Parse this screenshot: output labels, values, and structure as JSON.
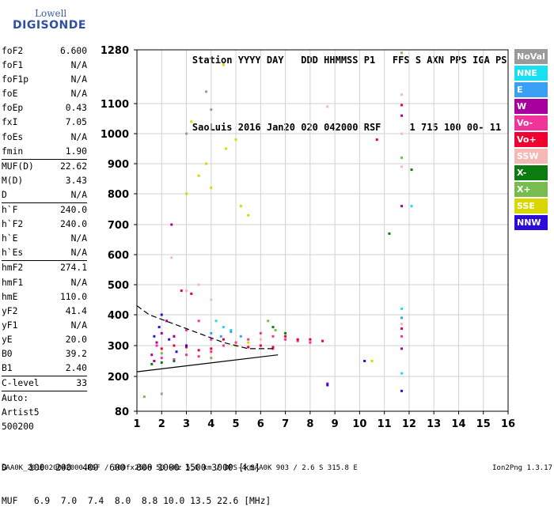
{
  "logo": {
    "line1": "Lowell",
    "line2": "DIGISONDE"
  },
  "header": {
    "row1": [
      "Station",
      "YYYY",
      "DAY",
      "DDD",
      "HHMMSS",
      "P1",
      "FFS",
      "S",
      "AXN",
      "PPS",
      "IGA",
      "PS"
    ],
    "row2": [
      "SaoLuis",
      "2016",
      "Jan20",
      "020",
      "042000",
      "RSF",
      "1",
      "715",
      "100",
      "00-",
      "11"
    ]
  },
  "params": {
    "group1": [
      {
        "name": "foF2",
        "value": "6.600"
      },
      {
        "name": "foF1",
        "value": "N/A"
      },
      {
        "name": "foF1p",
        "value": "N/A"
      },
      {
        "name": "foE",
        "value": "N/A"
      },
      {
        "name": "foEp",
        "value": "0.43"
      },
      {
        "name": "fxI",
        "value": "7.05"
      },
      {
        "name": "foEs",
        "value": "N/A"
      },
      {
        "name": "fmin",
        "value": "1.90"
      }
    ],
    "group2": [
      {
        "name": "MUF(D)",
        "value": "22.62"
      },
      {
        "name": "M(D)",
        "value": "3.43"
      },
      {
        "name": "D",
        "value": "N/A"
      }
    ],
    "group3": [
      {
        "name": "h`F",
        "value": "240.0"
      },
      {
        "name": "h`F2",
        "value": "240.0"
      },
      {
        "name": "h`E",
        "value": "N/A"
      },
      {
        "name": "h`Es",
        "value": "N/A"
      }
    ],
    "group4": [
      {
        "name": "hmF2",
        "value": "274.1"
      },
      {
        "name": "hmF1",
        "value": "N/A"
      },
      {
        "name": "hmE",
        "value": "110.0"
      },
      {
        "name": "yF2",
        "value": "41.4"
      },
      {
        "name": "yF1",
        "value": "N/A"
      },
      {
        "name": "yE",
        "value": "20.0"
      },
      {
        "name": "B0",
        "value": "39.2"
      },
      {
        "name": "B1",
        "value": "2.40"
      }
    ],
    "clevel": {
      "name": "C-level",
      "value": "33"
    },
    "auto": [
      "Auto:",
      "Artist5",
      "500200"
    ]
  },
  "legend": [
    {
      "label": "NoVal",
      "color": "#9a9a9a"
    },
    {
      "label": "NNE",
      "color": "#19e0f0"
    },
    {
      "label": "E",
      "color": "#3aa0f5"
    },
    {
      "label": "W",
      "color": "#a8009e"
    },
    {
      "label": "Vo-",
      "color": "#f0349a"
    },
    {
      "label": "Vo+",
      "color": "#ee0030"
    },
    {
      "label": "SSW",
      "color": "#f6b8b4"
    },
    {
      "label": "X-",
      "color": "#0c7c10"
    },
    {
      "label": "X+",
      "color": "#78bb4e"
    },
    {
      "label": "SSE",
      "color": "#d8d800"
    },
    {
      "label": "NNW",
      "color": "#2c0cd8"
    }
  ],
  "muf_table": {
    "row_d_label": "D",
    "distances": [
      "100",
      "200",
      "400",
      "600",
      "800",
      "1000",
      "1500",
      "3000"
    ],
    "unit_d": "[km]",
    "row_muf_label": "MUF",
    "muf_values": [
      "6.9",
      "7.0",
      "7.4",
      "8.0",
      "8.8",
      "10.0",
      "13.5",
      "22.6"
    ],
    "unit_muf": "[MHz]"
  },
  "footer": {
    "left": "SAA0K_2016020042000.RSF / 300fx256h 50 kHz 5.0 km / DPS-4 SAA0K 903 / 2.6 S 315.8 E",
    "right": "Ion2Png 1.3.17"
  },
  "chart_data": {
    "type": "scatter",
    "title": "",
    "xlabel": "",
    "ylabel": "",
    "xlim": [
      1,
      16
    ],
    "ylim": [
      80,
      1280
    ],
    "x_ticks": [
      1,
      2,
      3,
      4,
      5,
      6,
      7,
      8,
      9,
      10,
      11,
      12,
      13,
      14,
      15,
      16
    ],
    "y_ticks": [
      80,
      200,
      300,
      400,
      500,
      600,
      700,
      800,
      900,
      1000,
      1100,
      1280
    ],
    "grid": true,
    "legend_position": "right",
    "series": [
      {
        "name": "Vo-",
        "points": [
          [
            1.8,
            300
          ],
          [
            2.0,
            260
          ],
          [
            2.5,
            255
          ],
          [
            3.0,
            270
          ],
          [
            3.5,
            265
          ],
          [
            4.0,
            280
          ],
          [
            4.5,
            300
          ],
          [
            5.0,
            310
          ],
          [
            5.5,
            320
          ],
          [
            6.0,
            340
          ],
          [
            6.5,
            330
          ],
          [
            7.0,
            320
          ],
          [
            7.5,
            315
          ],
          [
            8.0,
            310
          ],
          [
            2.5,
            330
          ],
          [
            3.0,
            350
          ],
          [
            3.5,
            380
          ],
          [
            4.0,
            320
          ],
          [
            6.5,
            290
          ],
          [
            11.7,
            330
          ]
        ]
      },
      {
        "name": "Vo+",
        "points": [
          [
            2.0,
            290
          ],
          [
            2.5,
            300
          ],
          [
            3.0,
            295
          ],
          [
            3.5,
            285
          ],
          [
            4.0,
            290
          ],
          [
            4.5,
            320
          ],
          [
            5.0,
            300
          ],
          [
            5.5,
            295
          ],
          [
            6.0,
            300
          ],
          [
            6.5,
            295
          ],
          [
            7.0,
            330
          ],
          [
            7.5,
            320
          ],
          [
            8.0,
            320
          ],
          [
            8.5,
            315
          ],
          [
            10.7,
            980
          ],
          [
            11.7,
            1095
          ],
          [
            11.7,
            355
          ],
          [
            2.8,
            480
          ],
          [
            3.2,
            470
          ]
        ]
      },
      {
        "name": "W",
        "points": [
          [
            1.6,
            270
          ],
          [
            1.8,
            310
          ],
          [
            2.0,
            340
          ],
          [
            2.2,
            380
          ],
          [
            1.7,
            250
          ],
          [
            2.4,
            700
          ],
          [
            2.5,
            330
          ],
          [
            11.7,
            1060
          ],
          [
            11.7,
            760
          ],
          [
            11.7,
            290
          ],
          [
            8.7,
            175
          ]
        ]
      },
      {
        "name": "NNE",
        "points": [
          [
            4.2,
            380
          ],
          [
            4.5,
            360
          ],
          [
            4.8,
            350
          ],
          [
            11.7,
            420
          ],
          [
            11.7,
            210
          ],
          [
            12.1,
            760
          ]
        ]
      },
      {
        "name": "E",
        "points": [
          [
            4.0,
            340
          ],
          [
            4.4,
            330
          ],
          [
            4.8,
            345
          ],
          [
            5.2,
            330
          ],
          [
            11.7,
            390
          ]
        ]
      },
      {
        "name": "SSW",
        "points": [
          [
            2.4,
            590
          ],
          [
            3.0,
            480
          ],
          [
            3.5,
            500
          ],
          [
            4.0,
            450
          ],
          [
            6.0,
            320
          ],
          [
            8.7,
            1090
          ],
          [
            11.7,
            1130
          ],
          [
            11.7,
            1000
          ],
          [
            11.7,
            890
          ],
          [
            11.7,
            370
          ]
        ]
      },
      {
        "name": "X-",
        "points": [
          [
            1.6,
            240
          ],
          [
            2.0,
            245
          ],
          [
            2.5,
            250
          ],
          [
            6.5,
            360
          ],
          [
            7.0,
            340
          ],
          [
            12.1,
            880
          ],
          [
            11.2,
            670
          ]
        ]
      },
      {
        "name": "X+",
        "points": [
          [
            2.0,
            275
          ],
          [
            4.0,
            260
          ],
          [
            6.3,
            380
          ],
          [
            6.6,
            350
          ],
          [
            11.7,
            1270
          ],
          [
            11.7,
            920
          ],
          [
            1.3,
            130
          ]
        ]
      },
      {
        "name": "SSE",
        "points": [
          [
            3.0,
            800
          ],
          [
            3.5,
            860
          ],
          [
            3.8,
            900
          ],
          [
            4.0,
            820
          ],
          [
            4.6,
            950
          ],
          [
            5.0,
            980
          ],
          [
            5.2,
            760
          ],
          [
            5.5,
            730
          ],
          [
            4.5,
            1230
          ],
          [
            3.2,
            1040
          ],
          [
            5.0,
            300
          ],
          [
            5.5,
            310
          ],
          [
            10.5,
            250
          ]
        ]
      },
      {
        "name": "NNW",
        "points": [
          [
            1.7,
            330
          ],
          [
            1.9,
            360
          ],
          [
            2.0,
            400
          ],
          [
            2.3,
            320
          ],
          [
            2.6,
            280
          ],
          [
            3.0,
            300
          ],
          [
            8.7,
            170
          ],
          [
            10.2,
            250
          ],
          [
            11.7,
            150
          ]
        ]
      },
      {
        "name": "NoVal",
        "points": [
          [
            2.0,
            140
          ],
          [
            3.8,
            1140
          ],
          [
            3.0,
            1000
          ],
          [
            4.0,
            1080
          ]
        ]
      }
    ],
    "lines": [
      {
        "style": "solid",
        "points": [
          [
            1.0,
            215
          ],
          [
            6.7,
            270
          ]
        ]
      },
      {
        "style": "dashed",
        "points": [
          [
            1.0,
            430
          ],
          [
            1.5,
            400
          ],
          [
            2.5,
            370
          ],
          [
            3.5,
            340
          ],
          [
            4.5,
            310
          ],
          [
            5.5,
            290
          ],
          [
            6.6,
            290
          ]
        ]
      }
    ]
  }
}
